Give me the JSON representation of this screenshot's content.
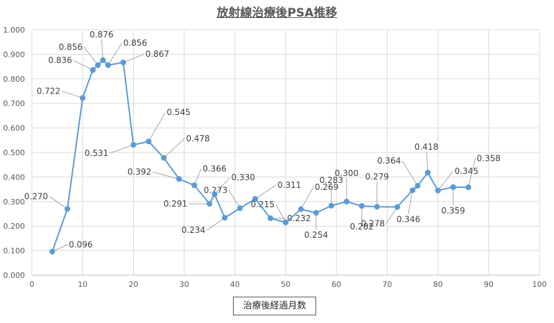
{
  "chart_data": {
    "type": "line",
    "title": "放射線治療後PSA推移",
    "xlabel": "治療後経過月数",
    "ylabel": "",
    "xlim": [
      0,
      100
    ],
    "ylim": [
      0,
      1.0
    ],
    "xticks": [
      "0",
      "10",
      "20",
      "30",
      "40",
      "50",
      "60",
      "70",
      "80",
      "90",
      "100"
    ],
    "yticks": [
      "0.000",
      "0.100",
      "0.200",
      "0.300",
      "0.400",
      "0.500",
      "0.600",
      "0.700",
      "0.800",
      "0.900",
      "1.000"
    ],
    "grid": true,
    "legend": "none",
    "series": [
      {
        "color": "#5B9BD5",
        "x": [
          4,
          7,
          10,
          12,
          13,
          14,
          15,
          18,
          20,
          23,
          26,
          29,
          32,
          35,
          36,
          38,
          41,
          44,
          47,
          50,
          53,
          56,
          59,
          62,
          65,
          68,
          72,
          75,
          76,
          78,
          80,
          83,
          86
        ],
        "y": [
          0.096,
          0.27,
          0.722,
          0.836,
          0.856,
          0.876,
          0.856,
          0.867,
          0.531,
          0.545,
          0.478,
          0.392,
          0.366,
          0.291,
          0.33,
          0.234,
          0.273,
          0.311,
          0.232,
          0.215,
          0.269,
          0.254,
          0.283,
          0.3,
          0.282,
          0.279,
          0.278,
          0.346,
          0.364,
          0.418,
          0.345,
          0.359,
          0.358
        ],
        "labels": [
          "0.096",
          "0.270",
          "0.722",
          "0.836",
          "0.856",
          "0.876",
          "0.856",
          "0.867",
          "0.531",
          "0.545",
          "0.478",
          "0.392",
          "0.366",
          "0.291",
          "0.330",
          "0.234",
          "0.273",
          "0.311",
          "0.232",
          "0.215",
          "0.269",
          "0.254",
          "0.283",
          "0.300",
          "0.282",
          "0.279",
          "0.278",
          "0.346",
          "0.364",
          "0.418",
          "0.345",
          "0.359",
          "0.358"
        ]
      }
    ]
  }
}
